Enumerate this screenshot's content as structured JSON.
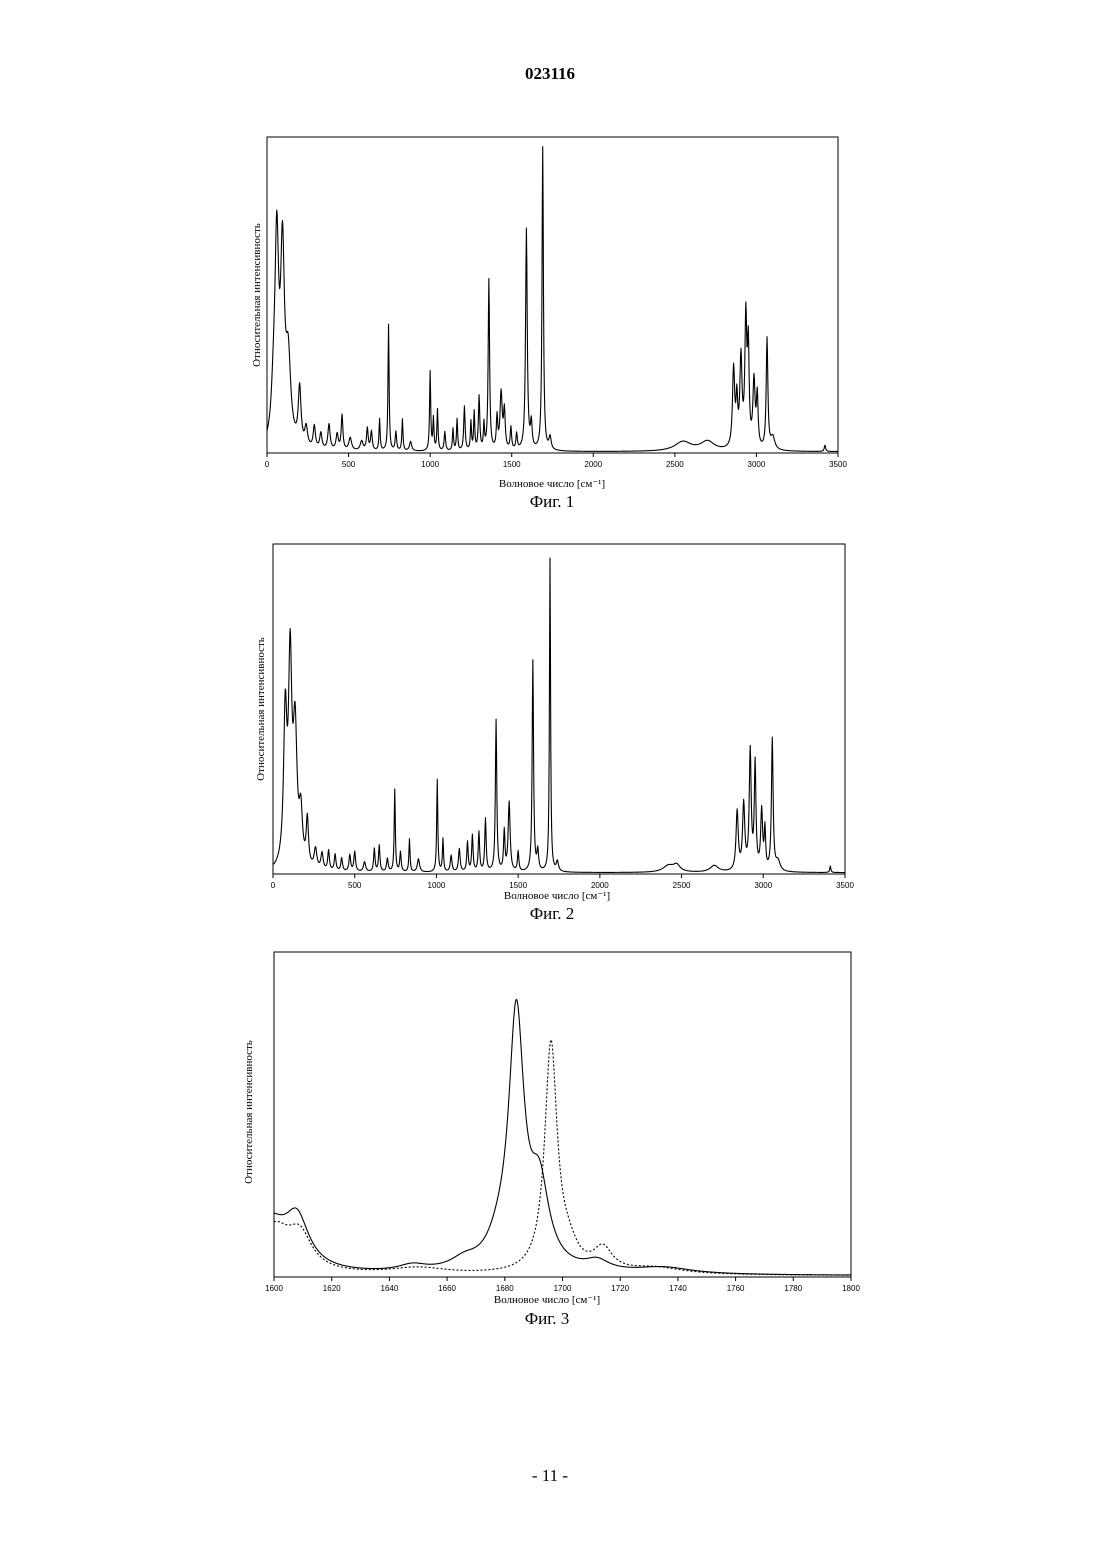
{
  "header": {
    "doc_number": "023116"
  },
  "footer": {
    "page_number": "- 11 -"
  },
  "chart_data": [
    {
      "type": "line",
      "caption": "Фиг. 1",
      "xlabel": "Волновое число [см⁻¹]",
      "ylabel": "Относительная интенсивность",
      "xlim": [
        0,
        3500
      ],
      "ylim": [
        0,
        100
      ],
      "xticks": [
        0,
        500,
        1000,
        1500,
        2000,
        2500,
        3000,
        3500
      ],
      "grid": false,
      "series": [
        {
          "style": "solid",
          "peaks": [
            [
              40,
              12,
              16
            ],
            [
              60,
              62,
              14
            ],
            [
              95,
              58,
              14
            ],
            [
              130,
              26,
              18
            ],
            [
              200,
              18,
              10
            ],
            [
              240,
              6,
              10
            ],
            [
              290,
              7,
              8
            ],
            [
              330,
              5,
              8
            ],
            [
              380,
              8,
              8
            ],
            [
              430,
              5,
              8
            ],
            [
              460,
              11,
              6
            ],
            [
              510,
              4,
              10
            ],
            [
              580,
              3,
              10
            ],
            [
              615,
              7,
              6
            ],
            [
              640,
              6,
              6
            ],
            [
              690,
              10,
              4
            ],
            [
              745,
              40,
              4
            ],
            [
              790,
              6,
              5
            ],
            [
              830,
              10,
              4
            ],
            [
              880,
              3,
              8
            ],
            [
              1000,
              25,
              4
            ],
            [
              1020,
              10,
              4
            ],
            [
              1045,
              13,
              4
            ],
            [
              1090,
              6,
              5
            ],
            [
              1140,
              7,
              4
            ],
            [
              1165,
              10,
              4
            ],
            [
              1210,
              14,
              5
            ],
            [
              1250,
              9,
              4
            ],
            [
              1270,
              12,
              4
            ],
            [
              1300,
              17,
              5
            ],
            [
              1330,
              8,
              4
            ],
            [
              1360,
              54,
              5
            ],
            [
              1410,
              10,
              5
            ],
            [
              1435,
              18,
              8
            ],
            [
              1455,
              12,
              6
            ],
            [
              1495,
              7,
              5
            ],
            [
              1530,
              5,
              5
            ],
            [
              1590,
              70,
              6
            ],
            [
              1620,
              8,
              6
            ],
            [
              1690,
              96,
              5
            ],
            [
              1735,
              4,
              8
            ],
            [
              2550,
              3,
              60
            ],
            [
              2700,
              3,
              50
            ],
            [
              2860,
              25,
              8
            ],
            [
              2880,
              14,
              6
            ],
            [
              2905,
              28,
              8
            ],
            [
              2935,
              40,
              7
            ],
            [
              2950,
              30,
              6
            ],
            [
              2985,
              21,
              8
            ],
            [
              3005,
              16,
              6
            ],
            [
              3065,
              35,
              6
            ],
            [
              3100,
              4,
              15
            ],
            [
              3420,
              2,
              5
            ]
          ]
        }
      ]
    },
    {
      "type": "line",
      "caption": "Фиг. 2",
      "xlabel": "Волновое число [см⁻¹]",
      "ylabel": "Относительная интенсивность",
      "xlim": [
        0,
        3500
      ],
      "ylim": [
        0,
        100
      ],
      "xticks": [
        0,
        500,
        1000,
        1500,
        2000,
        2500,
        3000,
        3500
      ],
      "grid": false,
      "series": [
        {
          "style": "solid",
          "peaks": [
            [
              75,
              45,
              12
            ],
            [
              105,
              60,
              12
            ],
            [
              135,
              40,
              14
            ],
            [
              170,
              15,
              12
            ],
            [
              210,
              14,
              8
            ],
            [
              260,
              6,
              10
            ],
            [
              300,
              5,
              8
            ],
            [
              340,
              6,
              6
            ],
            [
              380,
              5,
              6
            ],
            [
              420,
              4,
              6
            ],
            [
              470,
              5,
              6
            ],
            [
              500,
              6,
              6
            ],
            [
              560,
              3,
              8
            ],
            [
              620,
              7,
              5
            ],
            [
              650,
              8,
              5
            ],
            [
              700,
              4,
              6
            ],
            [
              745,
              25,
              4
            ],
            [
              780,
              6,
              5
            ],
            [
              835,
              10,
              4
            ],
            [
              890,
              4,
              8
            ],
            [
              1005,
              28,
              4
            ],
            [
              1040,
              10,
              4
            ],
            [
              1090,
              5,
              6
            ],
            [
              1140,
              7,
              6
            ],
            [
              1190,
              9,
              5
            ],
            [
              1220,
              11,
              5
            ],
            [
              1260,
              12,
              5
            ],
            [
              1300,
              16,
              5
            ],
            [
              1365,
              46,
              5
            ],
            [
              1415,
              12,
              5
            ],
            [
              1445,
              21,
              7
            ],
            [
              1500,
              6,
              5
            ],
            [
              1590,
              64,
              5
            ],
            [
              1620,
              6,
              6
            ],
            [
              1695,
              95,
              4
            ],
            [
              1740,
              3,
              8
            ],
            [
              2420,
              2,
              40
            ],
            [
              2470,
              2,
              25
            ],
            [
              2700,
              2,
              30
            ],
            [
              2840,
              18,
              8
            ],
            [
              2880,
              20,
              8
            ],
            [
              2920,
              36,
              7
            ],
            [
              2950,
              32,
              6
            ],
            [
              2990,
              18,
              7
            ],
            [
              3010,
              12,
              5
            ],
            [
              3055,
              40,
              6
            ],
            [
              3090,
              3,
              15
            ],
            [
              3410,
              2,
              4
            ]
          ]
        }
      ]
    },
    {
      "type": "line",
      "caption": "Фиг. 3",
      "xlabel": "Волновое число [см⁻¹]",
      "ylabel": "Относительная интенсивность",
      "xlim": [
        1600,
        1800
      ],
      "ylim": [
        0,
        100
      ],
      "xticks": [
        1600,
        1620,
        1640,
        1660,
        1680,
        1700,
        1720,
        1740,
        1760,
        1780,
        1800
      ],
      "grid": false,
      "series": [
        {
          "style": "solid",
          "peaks": [
            [
              1598,
              16,
              8
            ],
            [
              1608,
              14,
              5
            ],
            [
              1648,
              2,
              6
            ],
            [
              1666,
              3,
              6
            ],
            [
              1678,
              6,
              5
            ],
            [
              1684,
              77,
              3.2
            ],
            [
              1692,
              24,
              4
            ],
            [
              1712,
              3,
              5
            ],
            [
              1735,
              2,
              12
            ]
          ]
        },
        {
          "style": "dotted",
          "peaks": [
            [
              1600,
              14,
              7
            ],
            [
              1609,
              10,
              5
            ],
            [
              1650,
              2,
              12
            ],
            [
              1696,
              70,
              2.6
            ],
            [
              1702,
              6,
              4
            ],
            [
              1714,
              7,
              4
            ],
            [
              1732,
              2,
              12
            ]
          ]
        }
      ]
    }
  ]
}
